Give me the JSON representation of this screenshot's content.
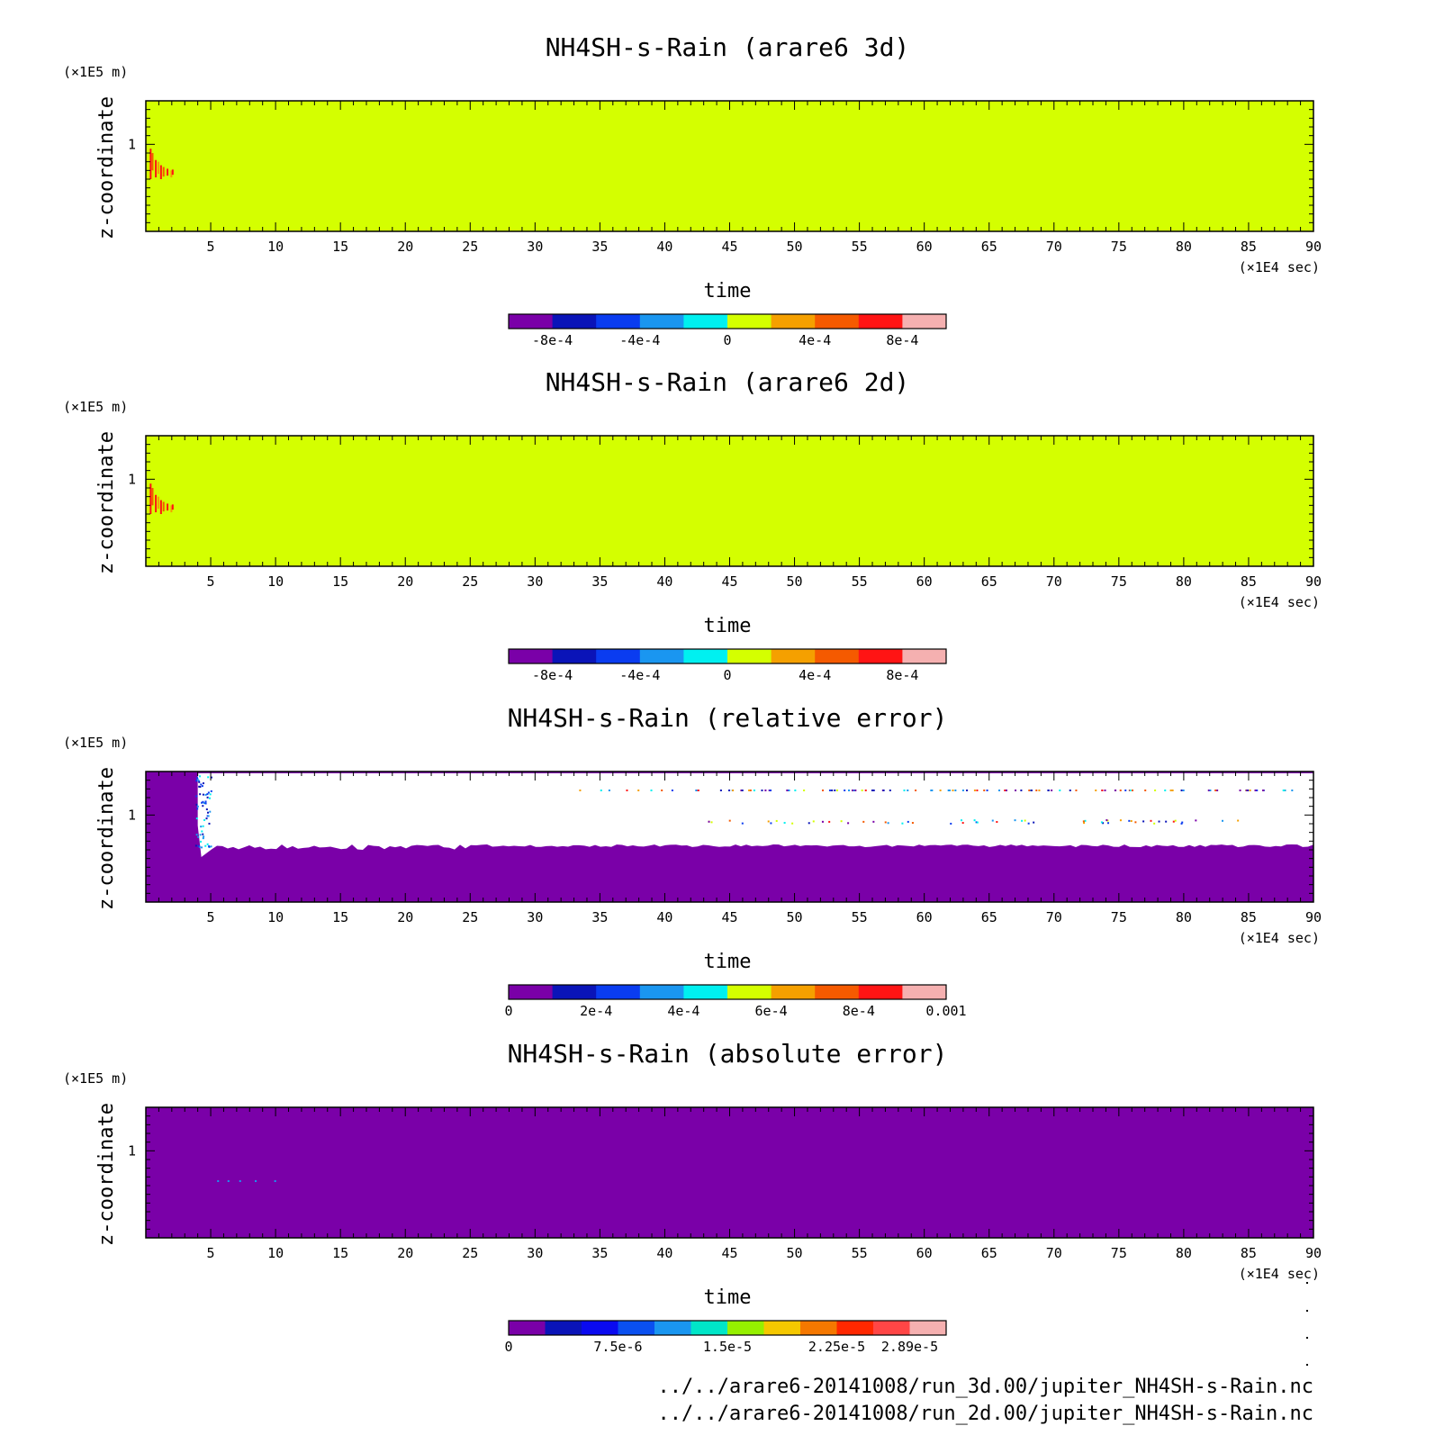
{
  "chart_data": [
    {
      "type": "heatmap",
      "title": "NH4SH-s-Rain (arare6 3d)",
      "xlabel": "time",
      "x_unit": "(×1E4 sec)",
      "ylabel": "z-coordinate",
      "y_unit": "(×1E5 m)",
      "xlim": [
        0,
        90
      ],
      "x_ticks": [
        5,
        10,
        15,
        20,
        25,
        30,
        35,
        40,
        45,
        50,
        55,
        60,
        65,
        70,
        75,
        80,
        85,
        90
      ],
      "y_ticks": [
        1
      ],
      "background_value": 0,
      "features": [
        {
          "description": "positive values (red/orange) near start",
          "x_range": [
            0,
            2.1
          ],
          "z_range": [
            0.6,
            0.95
          ],
          "value": 0.0008
        }
      ],
      "colorbar": {
        "labels": [
          "-8e-4",
          "-4e-4",
          "0",
          "4e-4",
          "8e-4"
        ],
        "colors": [
          "#7a00a8",
          "#0a14b8",
          "#0a3cf0",
          "#1a96f0",
          "#00f0f0",
          "#d4ff00",
          "#f5a000",
          "#f55a00",
          "#ff1414",
          "#f5b0b0"
        ]
      }
    },
    {
      "type": "heatmap",
      "title": "NH4SH-s-Rain (arare6 2d)",
      "xlabel": "time",
      "x_unit": "(×1E4 sec)",
      "ylabel": "z-coordinate",
      "y_unit": "(×1E5 m)",
      "xlim": [
        0,
        90
      ],
      "x_ticks": [
        5,
        10,
        15,
        20,
        25,
        30,
        35,
        40,
        45,
        50,
        55,
        60,
        65,
        70,
        75,
        80,
        85,
        90
      ],
      "y_ticks": [
        1
      ],
      "background_value": 0,
      "features": [
        {
          "description": "positive values (red/orange) near start",
          "x_range": [
            0,
            2.1
          ],
          "z_range": [
            0.6,
            0.95
          ],
          "value": 0.0008
        }
      ],
      "colorbar": {
        "labels": [
          "-8e-4",
          "-4e-4",
          "0",
          "4e-4",
          "8e-4"
        ],
        "colors": [
          "#7a00a8",
          "#0a14b8",
          "#0a3cf0",
          "#1a96f0",
          "#00f0f0",
          "#d4ff00",
          "#f5a000",
          "#f55a00",
          "#ff1414",
          "#f5b0b0"
        ]
      }
    },
    {
      "type": "heatmap",
      "title": "NH4SH-s-Rain (relative error)",
      "xlabel": "time",
      "x_unit": "(×1E4 sec)",
      "ylabel": "z-coordinate",
      "y_unit": "(×1E5 m)",
      "xlim": [
        0,
        90
      ],
      "x_ticks": [
        5,
        10,
        15,
        20,
        25,
        30,
        35,
        40,
        45,
        50,
        55,
        60,
        65,
        70,
        75,
        80,
        85,
        90
      ],
      "y_ticks": [
        1
      ],
      "background_value": 0,
      "features": [
        {
          "description": "undefined (white) region",
          "x_range": [
            4,
            90
          ],
          "z_range": [
            0.6,
            1.5
          ],
          "value": null
        }
      ],
      "colorbar": {
        "labels": [
          "0",
          "2e-4",
          "4e-4",
          "6e-4",
          "8e-4",
          "0.001"
        ],
        "colors": [
          "#7a00a8",
          "#0a14b8",
          "#0a3cf0",
          "#1a96f0",
          "#00f0f0",
          "#d4ff00",
          "#f5a000",
          "#f55a00",
          "#ff1414",
          "#f5b0b0"
        ]
      }
    },
    {
      "type": "heatmap",
      "title": "NH4SH-s-Rain (absolute error)",
      "xlabel": "time",
      "x_unit": "(×1E4 sec)",
      "ylabel": "z-coordinate",
      "y_unit": "(×1E5 m)",
      "xlim": [
        0,
        90
      ],
      "x_ticks": [
        5,
        10,
        15,
        20,
        25,
        30,
        35,
        40,
        45,
        50,
        55,
        60,
        65,
        70,
        75,
        80,
        85,
        90
      ],
      "y_ticks": [
        1
      ],
      "background_value": 0,
      "features": [],
      "colorbar": {
        "labels": [
          "0",
          "7.5e-6",
          "1.5e-5",
          "2.25e-5",
          "2.89e-5"
        ],
        "colors": [
          "#7a00a8",
          "#0a14b8",
          "#0a0af0",
          "#0a50f0",
          "#1a96f0",
          "#00e6c8",
          "#96f000",
          "#f5c800",
          "#f57800",
          "#ff2800",
          "#ff4646",
          "#f5b0b0"
        ]
      }
    }
  ],
  "footer": {
    "line1": "../../arare6-20141008/run_3d.00/jupiter_NH4SH-s-Rain.nc",
    "line2": "../../arare6-20141008/run_2d.00/jupiter_NH4SH-s-Rain.nc"
  }
}
